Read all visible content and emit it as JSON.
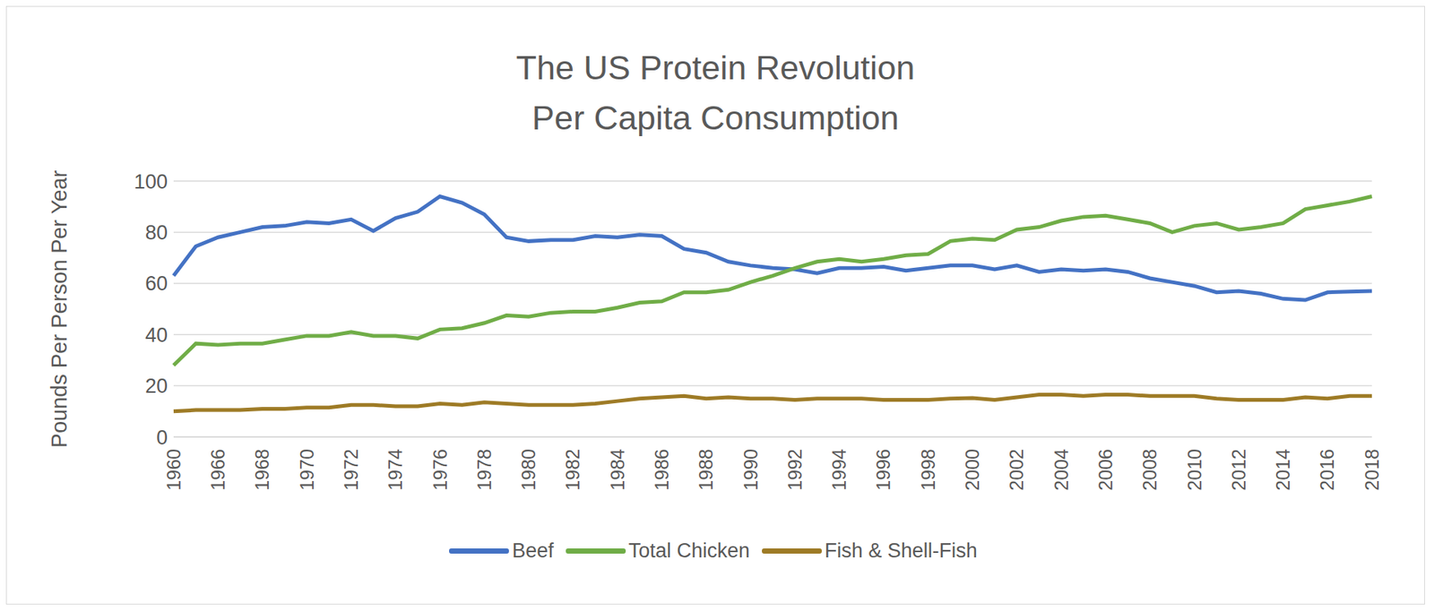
{
  "chart_data": {
    "type": "line",
    "title": "The US Protein Revolution",
    "subtitle": "Per Capita Consumption",
    "y_label": "Pounds Per Person Per Year",
    "categories": [
      "1960",
      null,
      "1966",
      null,
      "1968",
      null,
      "1970",
      null,
      "1972",
      null,
      "1974",
      null,
      "1976",
      null,
      "1978",
      null,
      "1980",
      null,
      "1982",
      null,
      "1984",
      null,
      "1986",
      null,
      "1988",
      null,
      "1990",
      null,
      "1992",
      null,
      "1994",
      null,
      "1996",
      null,
      "1998",
      null,
      "2000",
      null,
      "2002",
      null,
      "2004",
      null,
      "2006",
      null,
      "2008",
      null,
      "2010",
      null,
      "2012",
      null,
      "2014",
      null,
      "2016",
      null,
      "2018"
    ],
    "series": [
      {
        "name": "Beef",
        "color": "#4472c4",
        "values": [
          63,
          74.5,
          78,
          80,
          82,
          82.5,
          84,
          83.5,
          85,
          80.5,
          85.5,
          88,
          94,
          91.5,
          87,
          78,
          76.5,
          77,
          77,
          78.5,
          78,
          79,
          78.5,
          73.5,
          72,
          68.5,
          67,
          66,
          65.5,
          64,
          66,
          66,
          66.5,
          65,
          66,
          67,
          67,
          65.5,
          67,
          64.5,
          65.5,
          65,
          65.5,
          64.5,
          62,
          60.5,
          59,
          56.5,
          57,
          56,
          54,
          53.5,
          56.5,
          56.8,
          57
        ]
      },
      {
        "name": "Total Chicken",
        "color": "#70ad47",
        "values": [
          28,
          36.5,
          36,
          36.5,
          36.5,
          38,
          39.5,
          39.5,
          41,
          39.5,
          39.5,
          38.5,
          42,
          42.5,
          44.5,
          47.5,
          47,
          48.5,
          49,
          49,
          50.5,
          52.5,
          53,
          56.5,
          56.5,
          57.5,
          60.5,
          63,
          66,
          68.5,
          69.5,
          68.5,
          69.5,
          71,
          71.5,
          76.5,
          77.5,
          77,
          81,
          82,
          84.5,
          86,
          86.5,
          85,
          83.5,
          80,
          82.5,
          83.5,
          81,
          82,
          83.5,
          89,
          90.5,
          92,
          94
        ]
      },
      {
        "name": "Fish & Shell-Fish",
        "color": "#9e7b26",
        "values": [
          10,
          10.5,
          10.5,
          10.5,
          11,
          11,
          11.5,
          11.5,
          12.5,
          12.5,
          12,
          12,
          13,
          12.5,
          13.5,
          13,
          12.5,
          12.5,
          12.5,
          13,
          14,
          15,
          15.5,
          16,
          15,
          15.5,
          15,
          15,
          14.5,
          15,
          15,
          15,
          14.5,
          14.5,
          14.5,
          15,
          15.2,
          14.5,
          15.5,
          16.5,
          16.5,
          16,
          16.5,
          16.5,
          16,
          16,
          16,
          15,
          14.5,
          14.5,
          14.5,
          15.5,
          15,
          16,
          16
        ]
      }
    ],
    "ylim": [
      0,
      100
    ],
    "yticks": [
      0,
      20,
      40,
      60,
      80,
      100
    ],
    "grid": true,
    "legend": "bottom"
  }
}
